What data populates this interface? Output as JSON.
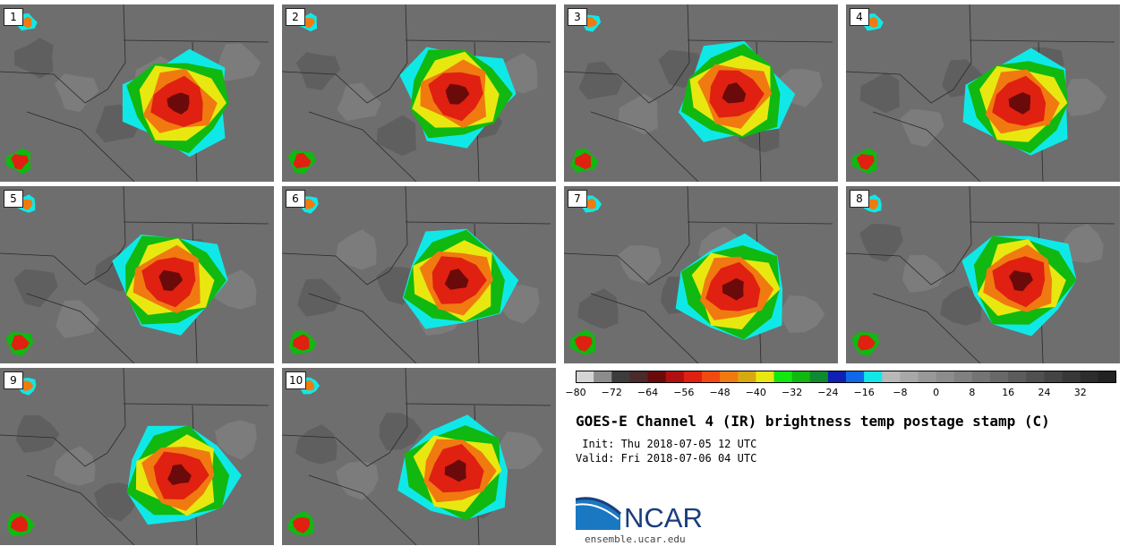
{
  "panels": [
    {
      "label": "1"
    },
    {
      "label": "2"
    },
    {
      "label": "3"
    },
    {
      "label": "4"
    },
    {
      "label": "5"
    },
    {
      "label": "6"
    },
    {
      "label": "7"
    },
    {
      "label": "8"
    },
    {
      "label": "9"
    },
    {
      "label": "10"
    }
  ],
  "colorbar": {
    "ticks": [
      "−80",
      "−72",
      "−64",
      "−56",
      "−48",
      "−40",
      "−32",
      "−24",
      "−16",
      "−8",
      "0",
      "8",
      "16",
      "24",
      "32"
    ],
    "colors": [
      "#d4d4d4",
      "#8c8c8c",
      "#3c3c3c",
      "#4a2a2a",
      "#6b0a0a",
      "#b01010",
      "#e02010",
      "#f04a10",
      "#f07a10",
      "#d8a810",
      "#e8e810",
      "#10e810",
      "#10b810",
      "#108a30",
      "#1020b0",
      "#1068e8",
      "#10e8e8",
      "#b8b8b8",
      "#a8a8a8",
      "#989898",
      "#8c8c8c",
      "#808080",
      "#747474",
      "#686868",
      "#5c5c5c",
      "#505050",
      "#444444",
      "#383838",
      "#2c2c2c",
      "#222222"
    ]
  },
  "title": "GOES-E Channel 4 (IR) brightness temp postage stamp (C)",
  "init": " Init: Thu 2018-07-05 12 UTC",
  "valid": "Valid: Fri 2018-07-06 04 UTC",
  "logo_text": "NCAR",
  "website": "ensemble.ucar.edu"
}
